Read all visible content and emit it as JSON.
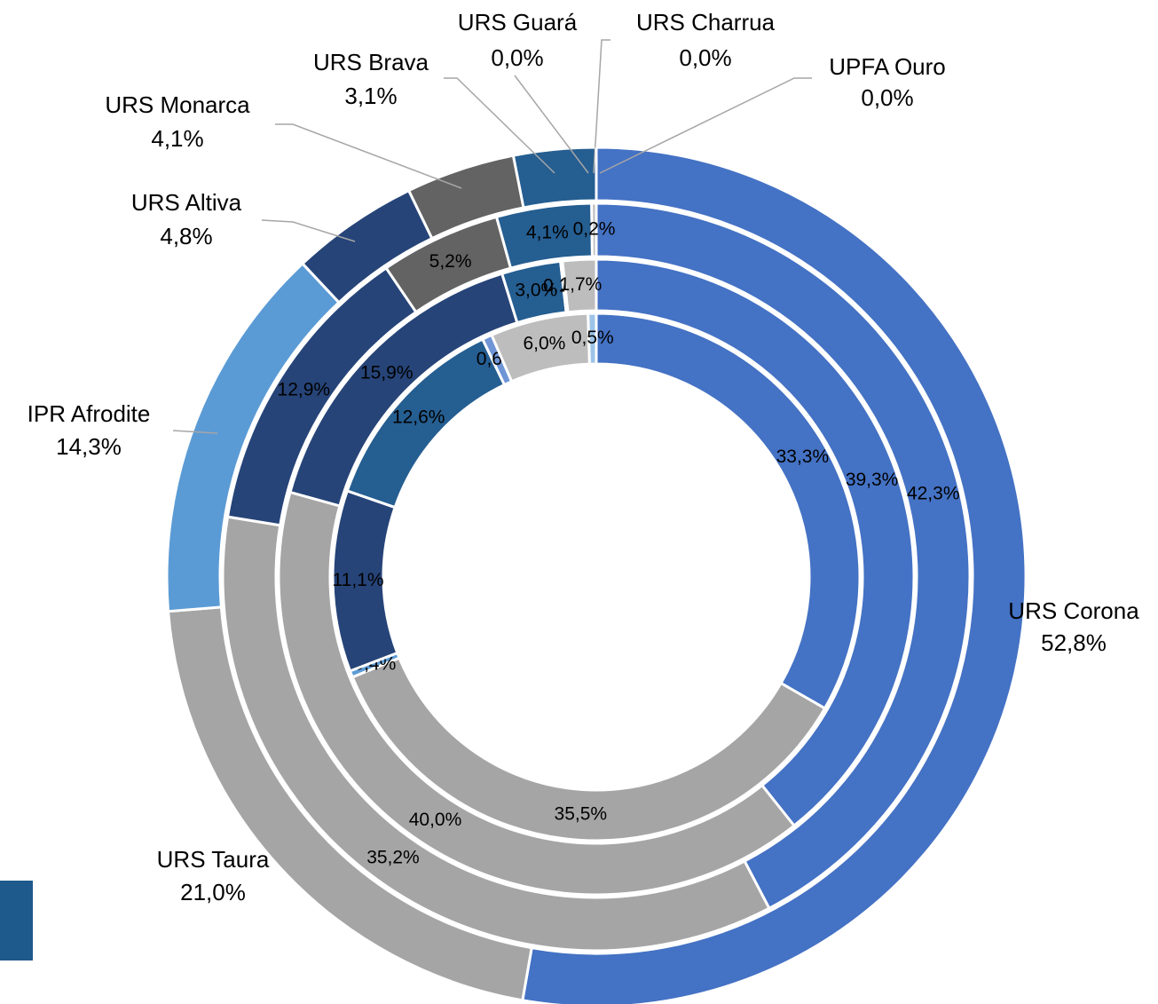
{
  "chart_data": {
    "type": "multi-donut",
    "categories": [
      "URS Corona",
      "URS Taura",
      "IPR Afrodite",
      "URS Altiva",
      "URS Monarca",
      "URS Brava",
      "URS Guará",
      "URS Charrua",
      "UPFA Ouro"
    ],
    "colors": [
      "#4472c4",
      "#a5a5a5",
      "#5b9bd5",
      "#264478",
      "#636363",
      "#255e91",
      "#6f95d6",
      "#bdbdbd",
      "#9dc3e6"
    ],
    "series": [
      {
        "values": [
          33.3,
          35.5,
          0.4,
          11.1,
          null,
          12.6,
          0.6,
          6.0,
          0.5
        ],
        "value_labels": [
          "33,3%",
          "35,5%",
          "0,4%",
          "11,1%",
          null,
          "12,6%",
          "0,6%",
          "6,0%",
          "0,5%"
        ]
      },
      {
        "values": [
          39.3,
          40.0,
          null,
          15.9,
          null,
          3.0,
          0.1,
          1.7,
          null
        ],
        "value_labels": [
          "39,3%",
          "40,0%",
          null,
          "15,9%",
          null,
          "3,0%",
          "0,1%",
          "1,7%",
          null
        ]
      },
      {
        "values": [
          42.3,
          35.2,
          null,
          12.9,
          5.2,
          4.1,
          null,
          0.2,
          null
        ],
        "value_labels": [
          "42,3%",
          "35,2%",
          null,
          "12,9%",
          "5,2%",
          "4,1%",
          null,
          "0,2%",
          null
        ]
      },
      {
        "values": [
          52.8,
          21.0,
          14.3,
          4.8,
          4.1,
          3.1,
          0.0,
          0.0,
          0.0
        ],
        "value_labels": [
          "52,8%",
          "21,0%",
          "14,3%",
          "4,8%",
          "4,1%",
          "3,1%",
          "0,0%",
          "0,0%",
          "0,0%"
        ]
      }
    ]
  }
}
